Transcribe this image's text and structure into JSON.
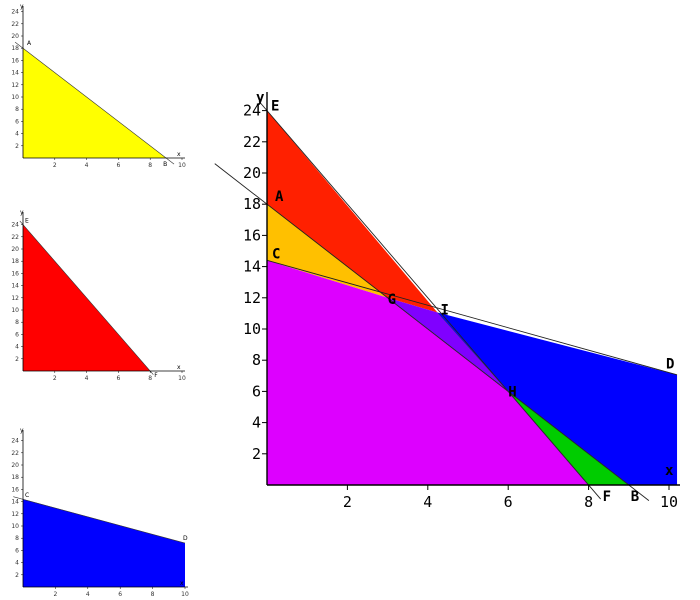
{
  "chart_data": [
    {
      "id": "small-yellow",
      "type": "area",
      "color": "#ffff00",
      "xlim": [
        0,
        10
      ],
      "ylim": [
        0,
        24
      ],
      "xlabel": "x",
      "ylabel": "y",
      "xticks": [
        "2",
        "4",
        "6",
        "8",
        "10"
      ],
      "yticks": [
        "2",
        "4",
        "6",
        "8",
        "10",
        "12",
        "14",
        "16",
        "18",
        "20",
        "22",
        "24"
      ],
      "region": [
        [
          0,
          0
        ],
        [
          0,
          18
        ],
        [
          9,
          0
        ]
      ],
      "boundary_line": [
        [
          -0.5,
          19
        ],
        [
          9.5,
          -1
        ]
      ],
      "points": [
        {
          "label": "A",
          "x": 0,
          "y": 18
        },
        {
          "label": "B",
          "x": 9,
          "y": 0
        }
      ]
    },
    {
      "id": "small-red",
      "type": "area",
      "color": "#ff0000",
      "xlim": [
        0,
        10
      ],
      "ylim": [
        0,
        24
      ],
      "xlabel": "x",
      "ylabel": "y",
      "xticks": [
        "2",
        "4",
        "6",
        "8",
        "10"
      ],
      "yticks": [
        "2",
        "4",
        "6",
        "8",
        "10",
        "12",
        "14",
        "16",
        "18",
        "20",
        "22",
        "24"
      ],
      "region": [
        [
          0,
          0
        ],
        [
          0,
          24
        ],
        [
          8,
          0
        ]
      ],
      "boundary_line": [
        [
          -0.2,
          24.6
        ],
        [
          8.2,
          -0.6
        ]
      ],
      "points": [
        {
          "label": "E",
          "x": 0,
          "y": 24
        },
        {
          "label": "F",
          "x": 8,
          "y": 0
        }
      ]
    },
    {
      "id": "small-blue",
      "type": "area",
      "color": "#0000ff",
      "xlim": [
        0,
        10
      ],
      "ylim": [
        0,
        24
      ],
      "xlabel": "x",
      "ylabel": "y",
      "xticks": [
        "2",
        "4",
        "6",
        "8",
        "10"
      ],
      "yticks": [
        "2",
        "4",
        "6",
        "8",
        "10",
        "12",
        "14",
        "16",
        "18",
        "20",
        "22",
        "24"
      ],
      "region": [
        [
          0,
          0
        ],
        [
          0,
          14.4
        ],
        [
          10,
          7.2
        ],
        [
          10,
          0
        ]
      ],
      "boundary_line": [
        [
          -0.6,
          14.8
        ],
        [
          10,
          7.2
        ]
      ],
      "points": [
        {
          "label": "C",
          "x": 0,
          "y": 14.4
        },
        {
          "label": "D",
          "x": 10,
          "y": 7.2
        }
      ]
    },
    {
      "id": "main-combined",
      "type": "area",
      "xlim": [
        0,
        10.2
      ],
      "ylim": [
        0,
        24.5
      ],
      "ylabel": "y",
      "xticks": [
        "2",
        "4",
        "6",
        "8",
        "10"
      ],
      "yticks": [
        "2",
        "4",
        "6",
        "8",
        "10",
        "12",
        "14",
        "16",
        "18",
        "20",
        "22",
        "24"
      ],
      "regions": [
        {
          "name": "red-region",
          "color": "#ff2000",
          "polygon": [
            [
              0,
              24
            ],
            [
              0,
              18
            ],
            [
              3,
              12
            ],
            [
              4.24,
              11.06
            ]
          ]
        },
        {
          "name": "orange-region",
          "color": "#ffc000",
          "polygon": [
            [
              0,
              18
            ],
            [
              0,
              14.4
            ],
            [
              3,
              12
            ]
          ]
        },
        {
          "name": "violet-region",
          "color": "#8000ff",
          "polygon": [
            [
              3,
              12
            ],
            [
              4.24,
              11.06
            ],
            [
              6,
              6
            ]
          ]
        },
        {
          "name": "blue-region",
          "color": "#0000ff",
          "polygon": [
            [
              4.24,
              11.06
            ],
            [
              10.2,
              7.06
            ],
            [
              10.2,
              0
            ],
            [
              9,
              0
            ],
            [
              6,
              6
            ]
          ]
        },
        {
          "name": "green-region",
          "color": "#00cc00",
          "polygon": [
            [
              6,
              6
            ],
            [
              9,
              0
            ],
            [
              8,
              0
            ]
          ]
        },
        {
          "name": "magenta-region",
          "color": "#dd00ff",
          "polygon": [
            [
              0,
              0
            ],
            [
              0,
              14.4
            ],
            [
              3,
              12
            ],
            [
              6,
              6
            ],
            [
              8,
              0
            ]
          ]
        }
      ],
      "lines": [
        {
          "name": "line-AB",
          "from": [
            -1.3,
            20.6
          ],
          "to": [
            9.5,
            -1
          ]
        },
        {
          "name": "line-EF",
          "from": [
            -0.2,
            24.6
          ],
          "to": [
            8.3,
            -0.9
          ]
        },
        {
          "name": "line-CD",
          "from": [
            0,
            14.4
          ],
          "to": [
            10.2,
            7.06
          ]
        }
      ],
      "points": [
        {
          "label": "E",
          "x": 0,
          "y": 24
        },
        {
          "label": "A",
          "x": 0,
          "y": 18
        },
        {
          "label": "C",
          "x": 0,
          "y": 14.4
        },
        {
          "label": "G",
          "x": 3,
          "y": 12
        },
        {
          "label": "I",
          "x": 4.24,
          "y": 11.06
        },
        {
          "label": "D",
          "x": 10.2,
          "y": 7.2
        },
        {
          "label": "H",
          "x": 6,
          "y": 6
        },
        {
          "label": "F",
          "x": 8,
          "y": 0
        },
        {
          "label": "B",
          "x": 9,
          "y": 0
        },
        {
          "label": "x",
          "x": 9.8,
          "y": 0.4
        }
      ]
    }
  ]
}
